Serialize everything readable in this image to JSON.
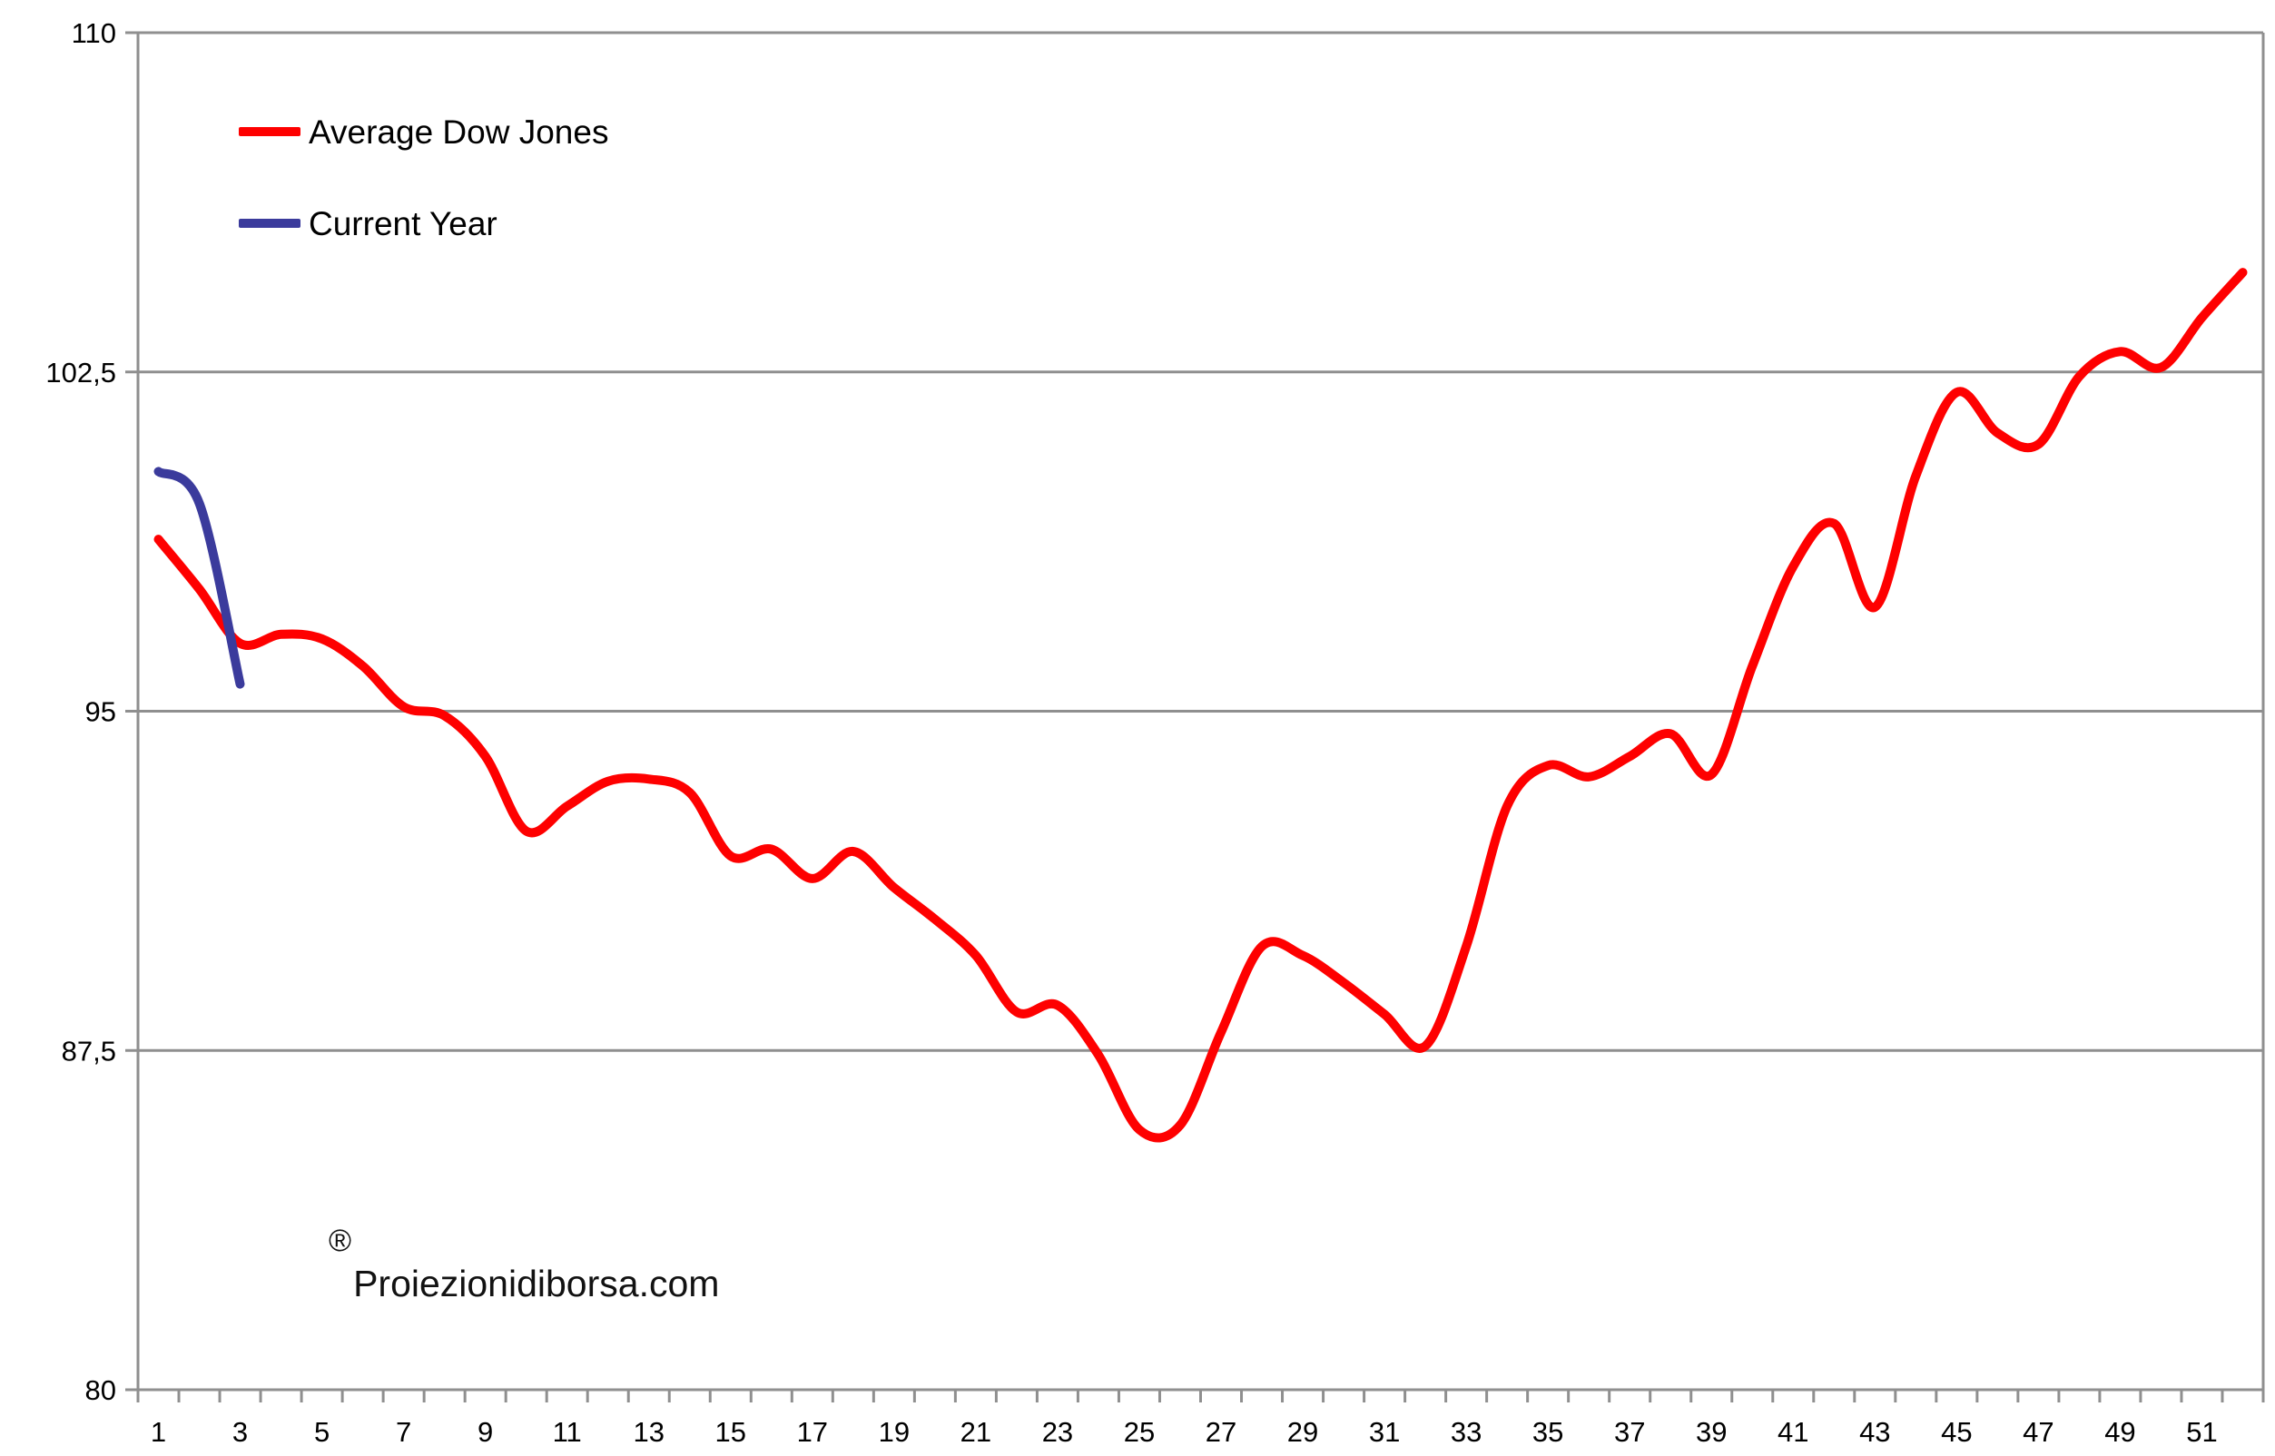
{
  "chart_data": {
    "type": "line",
    "title": "",
    "xlabel": "",
    "ylabel": "",
    "ylim": [
      80,
      110
    ],
    "xlim_weeks": [
      1,
      52
    ],
    "grid": "horizontal",
    "legend_position": "top-left",
    "y_ticks": [
      {
        "v": 80,
        "label": "80"
      },
      {
        "v": 87.5,
        "label": "87,5"
      },
      {
        "v": 95,
        "label": "95"
      },
      {
        "v": 102.5,
        "label": "102,5"
      },
      {
        "v": 110,
        "label": "110"
      }
    ],
    "x_tick_labels": [
      "1",
      "3",
      "5",
      "7",
      "9",
      "11",
      "13",
      "15",
      "17",
      "19",
      "21",
      "23",
      "25",
      "27",
      "29",
      "31",
      "33",
      "35",
      "37",
      "39",
      "41",
      "43",
      "45",
      "47",
      "49",
      "51"
    ],
    "x_label_weeks": [
      1,
      3,
      5,
      7,
      9,
      11,
      13,
      15,
      17,
      19,
      21,
      23,
      25,
      27,
      29,
      31,
      33,
      35,
      37,
      39,
      41,
      43,
      45,
      47,
      49,
      51
    ],
    "series": [
      {
        "name": "Average Dow Jones",
        "color": "#fe0000",
        "start_week": 1,
        "values": [
          98.8,
          97.7,
          96.5,
          96.7,
          96.6,
          96.0,
          95.1,
          94.9,
          94.0,
          92.35,
          92.9,
          93.45,
          93.5,
          93.2,
          91.8,
          91.95,
          91.3,
          91.9,
          91.1,
          90.4,
          89.6,
          88.35,
          88.5,
          87.4,
          85.75,
          85.85,
          87.9,
          89.8,
          89.6,
          89.0,
          88.3,
          87.6,
          89.8,
          92.9,
          93.8,
          93.55,
          94.0,
          94.5,
          93.6,
          96.0,
          98.2,
          99.15,
          97.3,
          100.2,
          102.05,
          101.15,
          100.9,
          102.4,
          102.95,
          102.6,
          103.7,
          104.7
        ]
      },
      {
        "name": "Current Year",
        "color": "#3b3b9c",
        "start_week": 1,
        "values": [
          100.3,
          99.6,
          95.6
        ]
      }
    ]
  },
  "legend": {
    "items": [
      {
        "label": "Average Dow Jones",
        "color": "#fe0000"
      },
      {
        "label": "Current Year",
        "color": "#3b3b9c"
      }
    ]
  },
  "watermark": {
    "registered_symbol": "®",
    "text": "Proiezionidiborsa.com"
  },
  "colors": {
    "axis": "#8f8f8f",
    "grid": "#8f8f8f",
    "background": "#ffffff",
    "text": "#000000"
  }
}
